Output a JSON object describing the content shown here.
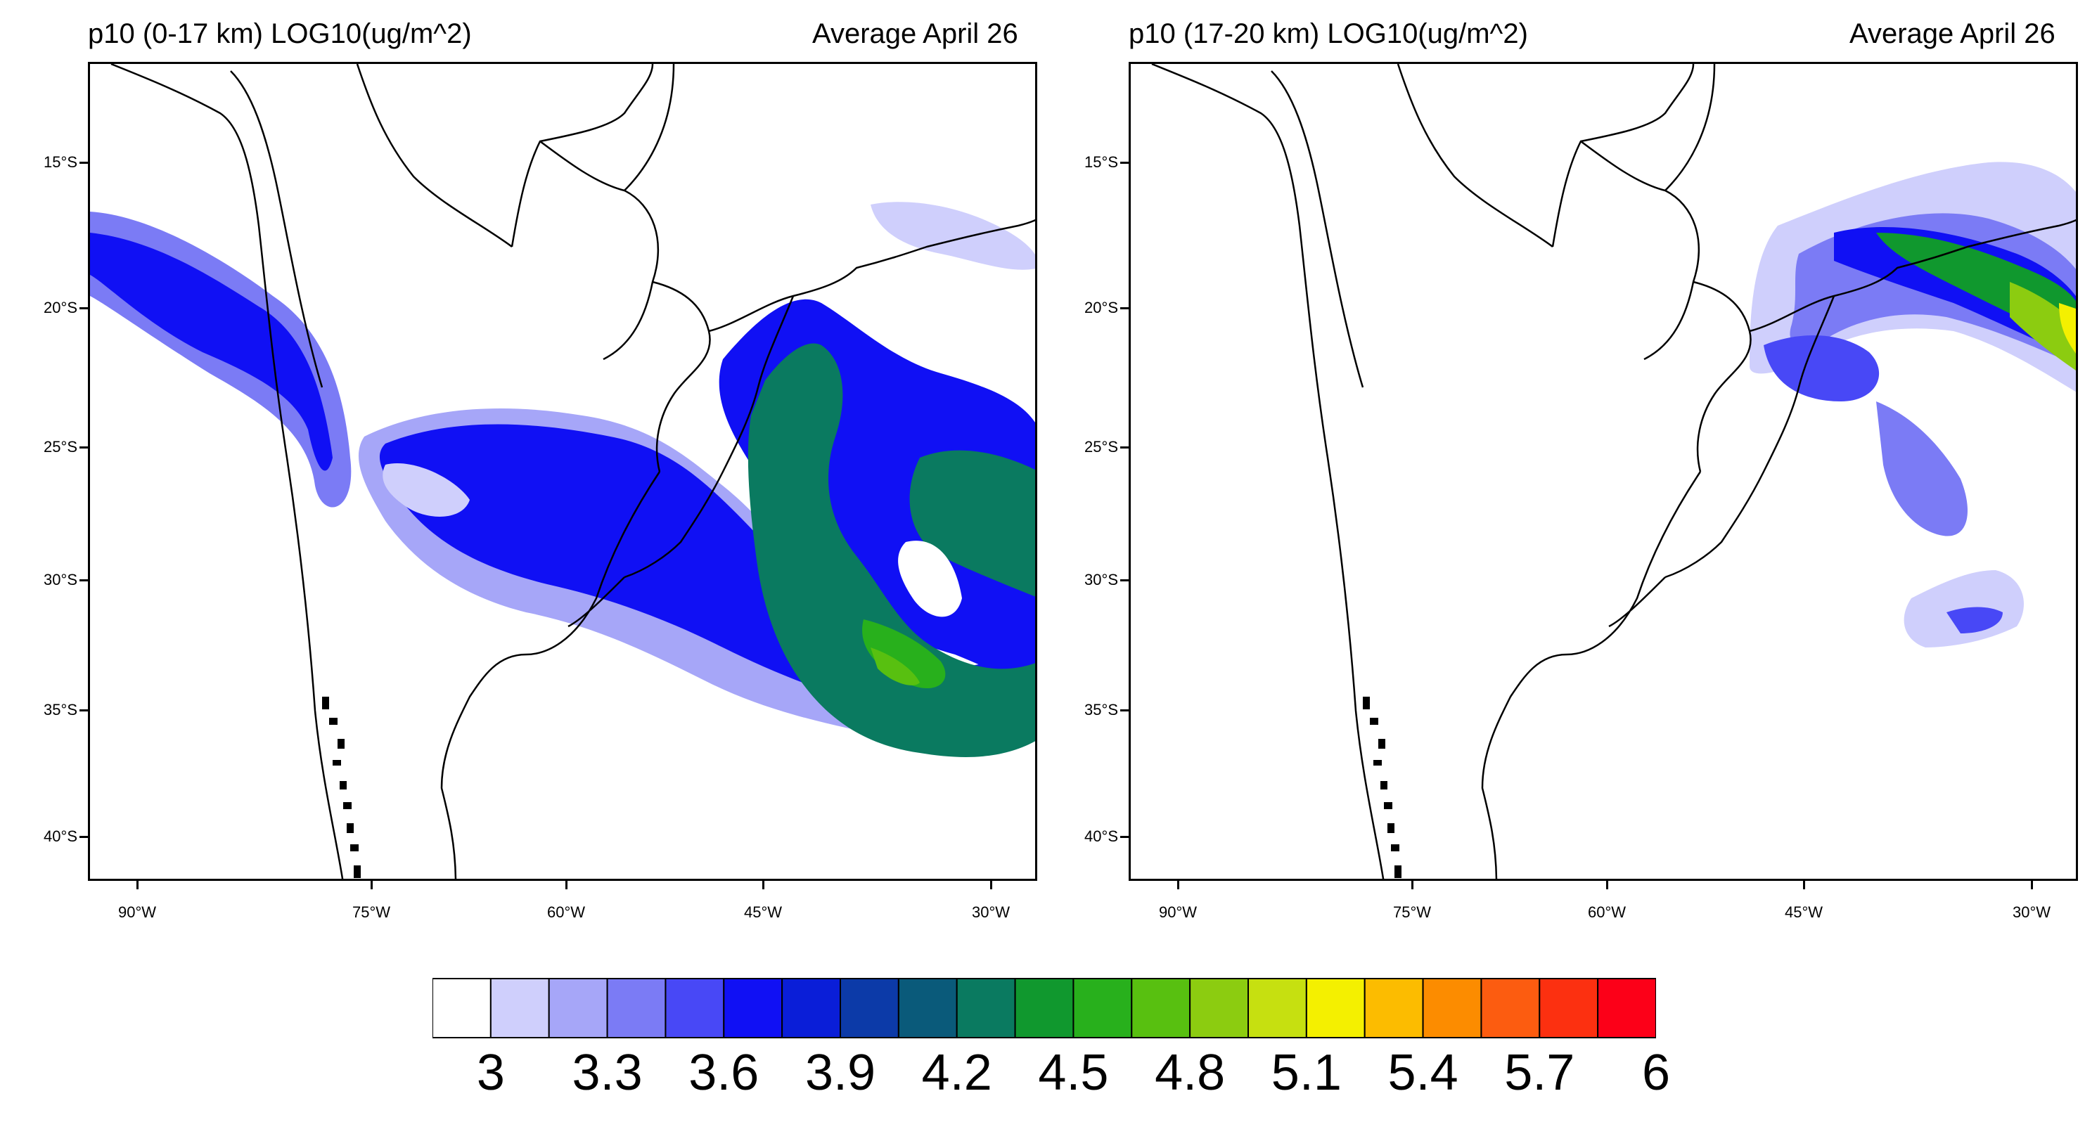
{
  "panels": [
    {
      "title_left": "p10 (0-17 km) LOG10(ug/m^2)",
      "title_right": "Average April 26",
      "lat_ticks": [
        "15°S",
        "20°S",
        "25°S",
        "30°S",
        "35°S",
        "40°S"
      ],
      "lon_ticks": [
        "90°W",
        "75°W",
        "60°W",
        "45°W",
        "30°W"
      ]
    },
    {
      "title_left": "p10 (17-20 km) LOG10(ug/m^2)",
      "title_right": "Average April 26",
      "lat_ticks": [
        "15°S",
        "20°S",
        "25°S",
        "30°S",
        "35°S",
        "40°S"
      ],
      "lon_ticks": [
        "90°W",
        "75°W",
        "60°W",
        "45°W",
        "30°W"
      ]
    }
  ],
  "colorbar": {
    "labels": [
      "3",
      "3.3",
      "3.6",
      "3.9",
      "4.2",
      "4.5",
      "4.8",
      "5.1",
      "5.4",
      "5.7",
      "6"
    ],
    "colors": [
      "#ffffff",
      "#cfcffc",
      "#a6a6f8",
      "#7b7bf5",
      "#4848f6",
      "#1010f4",
      "#0a1ed8",
      "#0c3aa8",
      "#0a5a7a",
      "#0a7a60",
      "#10982e",
      "#28b01c",
      "#58c010",
      "#8ccc10",
      "#c6e010",
      "#f4f000",
      "#fcbc00",
      "#fc8c00",
      "#fc5c10",
      "#fc3010",
      "#fc0018"
    ]
  }
}
